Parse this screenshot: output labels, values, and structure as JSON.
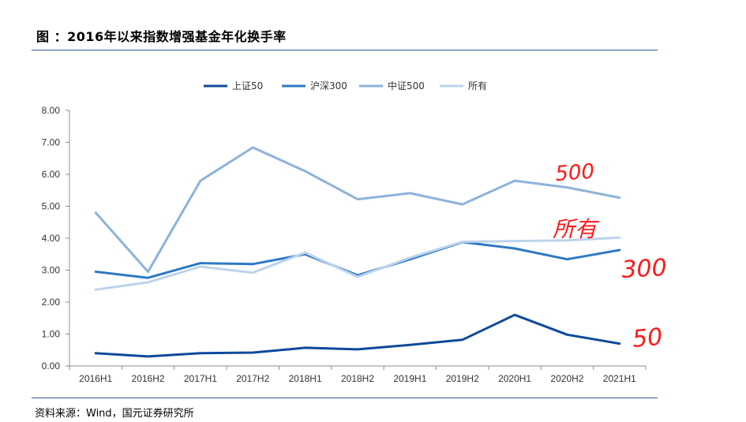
{
  "title": "图 ：2016年以来指数增强基金年化换手率",
  "source": "资料来源：Wind，国元证券研究所",
  "colors": {
    "rule": "#2f5d9a",
    "annotation": "#ff1a1a"
  },
  "chart_data": {
    "type": "line",
    "categories": [
      "2016H1",
      "2016H2",
      "2017H1",
      "2017H2",
      "2018H1",
      "2018H2",
      "2019H1",
      "2019H2",
      "2020H1",
      "2020H2",
      "2021H1"
    ],
    "ylim": [
      0,
      8
    ],
    "yticks": [
      "0.00",
      "1.00",
      "2.00",
      "3.00",
      "4.00",
      "5.00",
      "6.00",
      "7.00",
      "8.00"
    ],
    "legend_position": "top-center",
    "grid": false,
    "series": [
      {
        "name": "上证50",
        "color": "#0d4a9a",
        "values": [
          0.4,
          0.3,
          0.4,
          0.42,
          0.57,
          0.52,
          0.66,
          0.82,
          1.6,
          0.98,
          0.7
        ]
      },
      {
        "name": "沪深300",
        "color": "#2e79c4",
        "values": [
          2.95,
          2.76,
          3.22,
          3.19,
          3.5,
          2.84,
          3.34,
          3.88,
          3.68,
          3.34,
          3.63
        ]
      },
      {
        "name": "中证500",
        "color": "#8db3da",
        "values": [
          4.8,
          2.95,
          5.8,
          6.84,
          6.1,
          5.22,
          5.41,
          5.06,
          5.8,
          5.59,
          5.27
        ]
      },
      {
        "name": "所有",
        "color": "#bcd3ec",
        "values": [
          2.39,
          2.62,
          3.11,
          2.92,
          3.55,
          2.79,
          3.39,
          3.89,
          3.91,
          3.93,
          4.02
        ]
      }
    ],
    "annotations": [
      "500",
      "所有",
      "300",
      "50"
    ]
  }
}
